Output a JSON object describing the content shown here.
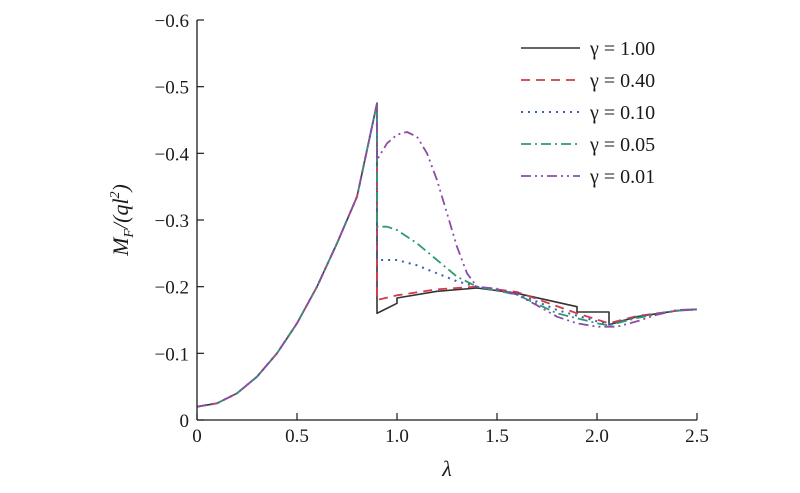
{
  "chart_data": {
    "type": "line",
    "xlabel": "λ",
    "ylabel_main": "M",
    "ylabel_sub": "F",
    "ylabel_rest": "/(ql",
    "ylabel_sup": "2",
    "ylabel_close": ")",
    "xlim": [
      0,
      2.5
    ],
    "ylim": [
      0,
      -0.6
    ],
    "x_ticks": [
      {
        "v": 0,
        "label": "0"
      },
      {
        "v": 0.5,
        "label": "0.5"
      },
      {
        "v": 1.0,
        "label": "1.0"
      },
      {
        "v": 1.5,
        "label": "1.5"
      },
      {
        "v": 2.0,
        "label": "2.0"
      },
      {
        "v": 2.5,
        "label": "2.5"
      }
    ],
    "y_ticks": [
      {
        "v": 0,
        "label": "0"
      },
      {
        "v": -0.1,
        "label": "−0.1"
      },
      {
        "v": -0.2,
        "label": "−0.2"
      },
      {
        "v": -0.3,
        "label": "−0.3"
      },
      {
        "v": -0.4,
        "label": "−0.4"
      },
      {
        "v": -0.5,
        "label": "−0.5"
      },
      {
        "v": -0.6,
        "label": "−0.6"
      }
    ],
    "grid": false,
    "legend_position": "top-right",
    "shared_prefix": {
      "x": [
        0,
        0.1,
        0.2,
        0.3,
        0.4,
        0.5,
        0.6,
        0.7,
        0.8,
        0.9
      ],
      "y": [
        -0.02,
        -0.025,
        -0.04,
        -0.065,
        -0.1,
        -0.145,
        -0.2,
        -0.265,
        -0.335,
        -0.475
      ]
    },
    "series": [
      {
        "name": "γ = 1.00",
        "color": "#333333",
        "dash": "",
        "width": 1.6,
        "x": [
          0.9,
          1.0,
          1.0,
          1.2,
          1.4,
          1.6,
          1.9,
          1.9,
          2.06,
          2.06,
          2.2,
          2.4,
          2.5
        ],
        "y": [
          -0.16,
          -0.175,
          -0.183,
          -0.193,
          -0.198,
          -0.19,
          -0.17,
          -0.162,
          -0.162,
          -0.143,
          -0.155,
          -0.164,
          -0.166
        ]
      },
      {
        "name": "γ = 0.40",
        "color": "#d43a48",
        "dash": "9,6",
        "width": 1.8,
        "x": [
          0.9,
          1.0,
          1.2,
          1.4,
          1.6,
          1.9,
          2.06,
          2.2,
          2.4,
          2.5
        ],
        "y": [
          -0.18,
          -0.187,
          -0.196,
          -0.2,
          -0.192,
          -0.16,
          -0.145,
          -0.156,
          -0.164,
          -0.166
        ]
      },
      {
        "name": "γ = 0.10",
        "color": "#3c5db8",
        "dash": "2,5",
        "width": 2.0,
        "x": [
          0.9,
          1.0,
          1.1,
          1.2,
          1.3,
          1.4,
          1.6,
          1.8,
          2.0,
          2.06,
          2.2,
          2.4,
          2.5
        ],
        "y": [
          -0.24,
          -0.24,
          -0.232,
          -0.22,
          -0.208,
          -0.2,
          -0.19,
          -0.165,
          -0.148,
          -0.143,
          -0.155,
          -0.164,
          -0.166
        ]
      },
      {
        "name": "γ = 0.05",
        "color": "#2f9a6e",
        "dash": "10,4,2,4",
        "width": 1.8,
        "x": [
          0.9,
          0.95,
          1.0,
          1.1,
          1.2,
          1.3,
          1.4,
          1.6,
          1.8,
          2.0,
          2.06,
          2.2,
          2.4,
          2.5
        ],
        "y": [
          -0.29,
          -0.29,
          -0.285,
          -0.265,
          -0.24,
          -0.215,
          -0.2,
          -0.188,
          -0.16,
          -0.145,
          -0.142,
          -0.153,
          -0.164,
          -0.166
        ]
      },
      {
        "name": "γ = 0.01",
        "color": "#8a4ca8",
        "dash": "10,4,2,4,2,4",
        "width": 1.8,
        "x": [
          0.9,
          0.95,
          1.0,
          1.05,
          1.1,
          1.15,
          1.2,
          1.25,
          1.3,
          1.35,
          1.4,
          1.5,
          1.6,
          1.7,
          1.8,
          1.9,
          2.0,
          2.1,
          2.2,
          2.3,
          2.4,
          2.5
        ],
        "y": [
          -0.39,
          -0.415,
          -0.428,
          -0.432,
          -0.425,
          -0.4,
          -0.36,
          -0.31,
          -0.26,
          -0.22,
          -0.2,
          -0.197,
          -0.188,
          -0.172,
          -0.155,
          -0.145,
          -0.14,
          -0.14,
          -0.148,
          -0.158,
          -0.165,
          -0.166
        ]
      }
    ]
  }
}
